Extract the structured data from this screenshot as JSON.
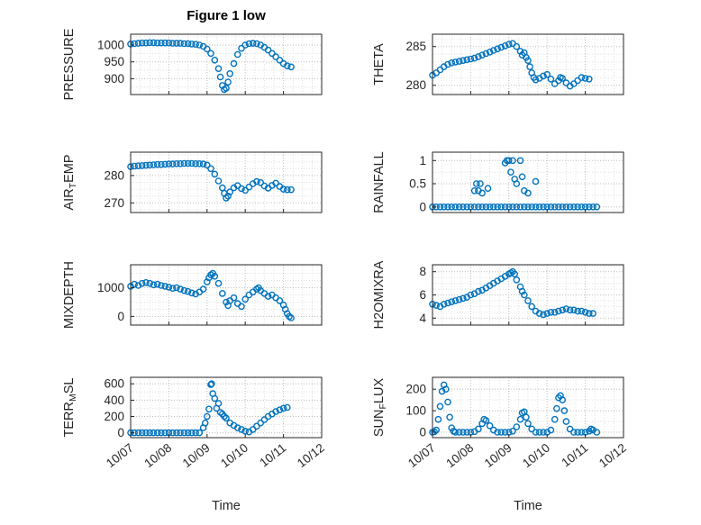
{
  "figure": {
    "title": "Figure 1 low",
    "xlabel": "Time",
    "marker_color": "#0072BD",
    "axis_color": "#262626",
    "grid_major_color": "#bdbdbd",
    "grid_minor_color": "#e0e0e0",
    "x_axis": {
      "lim": [
        7,
        12
      ],
      "ticks": [
        7,
        8,
        9,
        10,
        11,
        12
      ],
      "labels": [
        "10/07",
        "10/08",
        "10/09",
        "10/10",
        "10/11",
        "10/12"
      ],
      "minor_step": 0.25
    }
  },
  "chart_data": [
    {
      "id": "pressure",
      "type": "scatter",
      "row": 0,
      "col": 0,
      "ylabel": {
        "pre": "PRESSURE",
        "sub": "",
        "post": ""
      },
      "ylim": [
        853,
        1032
      ],
      "yticks": [
        900,
        950,
        1000
      ],
      "ytick_labels": [
        "900",
        "950",
        "1000"
      ],
      "y_minor_step": 25,
      "x": [
        7.0,
        7.1,
        7.2,
        7.3,
        7.4,
        7.5,
        7.6,
        7.7,
        7.8,
        7.9,
        8.0,
        8.1,
        8.2,
        8.3,
        8.4,
        8.5,
        8.6,
        8.7,
        8.8,
        8.9,
        9.0,
        9.1,
        9.2,
        9.3,
        9.35,
        9.4,
        9.45,
        9.5,
        9.55,
        9.6,
        9.7,
        9.8,
        9.9,
        10.0,
        10.1,
        10.2,
        10.3,
        10.4,
        10.5,
        10.6,
        10.7,
        10.8,
        10.9,
        11.0,
        11.1,
        11.2
      ],
      "y": [
        1003,
        1004,
        1005,
        1006,
        1006,
        1007,
        1007,
        1006,
        1006,
        1006,
        1006,
        1005,
        1005,
        1005,
        1004,
        1004,
        1003,
        1002,
        1000,
        996,
        988,
        975,
        955,
        930,
        905,
        880,
        868,
        872,
        890,
        915,
        945,
        972,
        990,
        1000,
        1004,
        1005,
        1004,
        1000,
        993,
        985,
        975,
        965,
        955,
        945,
        938,
        935
      ]
    },
    {
      "id": "theta",
      "type": "scatter",
      "row": 0,
      "col": 1,
      "ylabel": {
        "pre": "THETA",
        "sub": "",
        "post": ""
      },
      "ylim": [
        278.8,
        286.6
      ],
      "yticks": [
        280,
        285
      ],
      "ytick_labels": [
        "280",
        "285"
      ],
      "y_minor_step": 1,
      "x": [
        7.0,
        7.1,
        7.2,
        7.3,
        7.4,
        7.5,
        7.6,
        7.7,
        7.8,
        7.9,
        8.0,
        8.1,
        8.2,
        8.3,
        8.4,
        8.5,
        8.6,
        8.7,
        8.8,
        8.9,
        9.0,
        9.1,
        9.2,
        9.3,
        9.35,
        9.4,
        9.45,
        9.5,
        9.55,
        9.6,
        9.65,
        9.7,
        9.8,
        9.9,
        10.0,
        10.1,
        10.2,
        10.3,
        10.35,
        10.4,
        10.5,
        10.6,
        10.7,
        10.8,
        10.9,
        11.0,
        11.1
      ],
      "y": [
        281.3,
        281.6,
        282.0,
        282.4,
        282.7,
        282.9,
        283.0,
        283.1,
        283.2,
        283.3,
        283.4,
        283.5,
        283.7,
        283.9,
        284.1,
        284.3,
        284.5,
        284.7,
        284.9,
        285.1,
        285.3,
        285.4,
        285.0,
        284.4,
        283.9,
        284.2,
        283.6,
        283.2,
        282.4,
        281.6,
        281.0,
        280.7,
        280.9,
        281.2,
        281.4,
        280.8,
        280.2,
        280.6,
        281.0,
        280.9,
        280.3,
        279.9,
        280.2,
        280.6,
        281.0,
        280.9,
        280.8
      ]
    },
    {
      "id": "air-temp",
      "type": "scatter",
      "row": 1,
      "col": 0,
      "ylabel": {
        "pre": "AIR",
        "sub": "T",
        "post": "EMP"
      },
      "ylim": [
        266.5,
        288.5
      ],
      "yticks": [
        270,
        280
      ],
      "ytick_labels": [
        "270",
        "280"
      ],
      "y_minor_step": 2.5,
      "x": [
        7.0,
        7.1,
        7.2,
        7.3,
        7.4,
        7.5,
        7.6,
        7.7,
        7.8,
        7.9,
        8.0,
        8.1,
        8.2,
        8.3,
        8.4,
        8.5,
        8.6,
        8.7,
        8.8,
        8.9,
        9.0,
        9.1,
        9.2,
        9.3,
        9.4,
        9.45,
        9.5,
        9.55,
        9.6,
        9.7,
        9.8,
        9.9,
        10.0,
        10.1,
        10.2,
        10.3,
        10.4,
        10.5,
        10.6,
        10.7,
        10.8,
        10.9,
        11.0,
        11.1,
        11.2
      ],
      "y": [
        283.2,
        283.4,
        283.5,
        283.6,
        283.7,
        283.8,
        283.9,
        284.0,
        284.0,
        284.1,
        284.2,
        284.2,
        284.3,
        284.3,
        284.4,
        284.4,
        284.4,
        284.3,
        284.3,
        284.2,
        283.8,
        282.5,
        280.5,
        278.0,
        275.5,
        273.5,
        271.8,
        272.5,
        274.0,
        275.5,
        276.3,
        275.2,
        274.6,
        275.8,
        277.0,
        277.8,
        277.4,
        276.2,
        275.4,
        276.4,
        277.2,
        276.0,
        275.0,
        274.8,
        274.8
      ]
    },
    {
      "id": "rainfall",
      "type": "scatter",
      "row": 1,
      "col": 1,
      "ylabel": {
        "pre": "RAINFALL",
        "sub": "",
        "post": ""
      },
      "ylim": [
        -0.12,
        1.18
      ],
      "yticks": [
        0,
        0.5,
        1
      ],
      "ytick_labels": [
        "0",
        "0.5",
        "1"
      ],
      "y_minor_step": 0.25,
      "x": [
        7.0,
        7.1,
        7.2,
        7.3,
        7.4,
        7.5,
        7.6,
        7.7,
        7.8,
        7.9,
        8.0,
        8.1,
        8.2,
        8.3,
        8.4,
        8.5,
        8.6,
        8.7,
        8.8,
        8.9,
        9.0,
        9.1,
        9.2,
        9.3,
        9.4,
        9.5,
        9.6,
        9.7,
        9.8,
        9.9,
        10.0,
        10.1,
        10.2,
        10.3,
        10.4,
        10.5,
        10.6,
        10.7,
        10.8,
        10.9,
        11.0,
        11.1,
        11.2,
        11.3,
        8.1,
        8.15,
        8.2,
        8.25,
        8.3,
        8.45,
        8.9,
        8.95,
        9.0,
        9.05,
        9.1,
        9.15,
        9.2,
        9.3,
        9.35,
        9.4,
        9.5,
        9.7
      ],
      "y": [
        0,
        0,
        0,
        0,
        0,
        0,
        0,
        0,
        0,
        0,
        0,
        0,
        0,
        0,
        0,
        0,
        0,
        0,
        0,
        0,
        0,
        0,
        0,
        0,
        0,
        0,
        0,
        0,
        0,
        0,
        0,
        0,
        0,
        0,
        0,
        0,
        0,
        0,
        0,
        0,
        0,
        0,
        0,
        0,
        0.35,
        0.5,
        0.35,
        0.5,
        0.3,
        0.4,
        0.95,
        1.0,
        1.0,
        0.75,
        1.0,
        0.6,
        0.5,
        1.0,
        0.65,
        0.35,
        0.3,
        0.55
      ]
    },
    {
      "id": "mixdepth",
      "type": "scatter",
      "row": 2,
      "col": 0,
      "ylabel": {
        "pre": "MIXDEPTH",
        "sub": "",
        "post": ""
      },
      "ylim": [
        -300,
        1800
      ],
      "yticks": [
        0,
        1000
      ],
      "ytick_labels": [
        "0",
        "1000"
      ],
      "y_minor_step": 250,
      "x": [
        7.0,
        7.1,
        7.2,
        7.3,
        7.4,
        7.5,
        7.6,
        7.7,
        7.8,
        7.9,
        8.0,
        8.1,
        8.2,
        8.3,
        8.4,
        8.5,
        8.6,
        8.7,
        8.8,
        8.9,
        9.0,
        9.05,
        9.1,
        9.15,
        9.2,
        9.3,
        9.4,
        9.5,
        9.55,
        9.6,
        9.7,
        9.8,
        9.9,
        10.0,
        10.1,
        10.2,
        10.3,
        10.35,
        10.4,
        10.5,
        10.6,
        10.7,
        10.8,
        10.9,
        11.0,
        11.05,
        11.1,
        11.15,
        11.2
      ],
      "y": [
        1050,
        1120,
        1080,
        1150,
        1180,
        1150,
        1100,
        1120,
        1080,
        1050,
        1020,
        980,
        1000,
        950,
        900,
        870,
        820,
        780,
        850,
        950,
        1200,
        1350,
        1450,
        1500,
        1400,
        1150,
        800,
        500,
        380,
        550,
        650,
        450,
        350,
        600,
        750,
        850,
        950,
        1000,
        900,
        800,
        700,
        750,
        650,
        550,
        400,
        250,
        100,
        0,
        -50
      ]
    },
    {
      "id": "h2omixra",
      "type": "scatter",
      "row": 2,
      "col": 1,
      "ylabel": {
        "pre": "H2OMIXRA",
        "sub": "",
        "post": ""
      },
      "ylim": [
        3.4,
        8.6
      ],
      "yticks": [
        4,
        6,
        8
      ],
      "ytick_labels": [
        "4",
        "6",
        "8"
      ],
      "y_minor_step": 0.5,
      "x": [
        7.0,
        7.1,
        7.2,
        7.3,
        7.4,
        7.5,
        7.6,
        7.7,
        7.8,
        7.9,
        8.0,
        8.1,
        8.2,
        8.3,
        8.4,
        8.5,
        8.6,
        8.7,
        8.8,
        8.9,
        9.0,
        9.05,
        9.1,
        9.15,
        9.2,
        9.3,
        9.35,
        9.4,
        9.5,
        9.6,
        9.7,
        9.8,
        9.9,
        10.0,
        10.1,
        10.2,
        10.3,
        10.4,
        10.5,
        10.6,
        10.7,
        10.8,
        10.9,
        11.0,
        11.1,
        11.2
      ],
      "y": [
        5.2,
        5.1,
        5.0,
        5.2,
        5.3,
        5.4,
        5.5,
        5.6,
        5.7,
        5.8,
        6.0,
        6.1,
        6.3,
        6.4,
        6.6,
        6.8,
        7.0,
        7.2,
        7.4,
        7.6,
        7.8,
        7.9,
        8.0,
        7.8,
        7.3,
        6.7,
        6.3,
        6.0,
        5.5,
        5.0,
        4.6,
        4.4,
        4.3,
        4.4,
        4.5,
        4.5,
        4.6,
        4.7,
        4.8,
        4.7,
        4.7,
        4.6,
        4.6,
        4.5,
        4.4,
        4.4
      ]
    },
    {
      "id": "terr-msl",
      "type": "scatter",
      "row": 3,
      "col": 0,
      "ylabel": {
        "pre": "TERR",
        "sub": "M",
        "post": "SL"
      },
      "ylim": [
        -60,
        680
      ],
      "yticks": [
        0,
        200,
        400,
        600
      ],
      "ytick_labels": [
        "0",
        "200",
        "400",
        "600"
      ],
      "y_minor_step": 100,
      "x": [
        7.0,
        7.1,
        7.2,
        7.3,
        7.4,
        7.5,
        7.6,
        7.7,
        7.8,
        7.9,
        8.0,
        8.1,
        8.2,
        8.3,
        8.4,
        8.5,
        8.6,
        8.7,
        8.8,
        8.9,
        8.95,
        9.0,
        9.05,
        9.1,
        9.12,
        9.15,
        9.2,
        9.25,
        9.3,
        9.35,
        9.4,
        9.45,
        9.5,
        9.6,
        9.7,
        9.8,
        9.9,
        10.0,
        10.1,
        10.2,
        10.3,
        10.4,
        10.5,
        10.6,
        10.7,
        10.8,
        10.9,
        11.0,
        11.1
      ],
      "y": [
        0,
        0,
        0,
        0,
        0,
        0,
        0,
        0,
        0,
        0,
        0,
        0,
        0,
        0,
        0,
        0,
        0,
        0,
        0,
        60,
        120,
        200,
        290,
        590,
        600,
        480,
        420,
        300,
        360,
        250,
        230,
        200,
        180,
        120,
        90,
        60,
        40,
        20,
        10,
        40,
        80,
        120,
        160,
        200,
        230,
        260,
        280,
        300,
        310
      ]
    },
    {
      "id": "sun-flux",
      "type": "scatter",
      "row": 3,
      "col": 1,
      "ylabel": {
        "pre": "SUN",
        "sub": "F",
        "post": "LUX"
      },
      "ylim": [
        -25,
        255
      ],
      "yticks": [
        0,
        100,
        200
      ],
      "ytick_labels": [
        "0",
        "100",
        "200"
      ],
      "y_minor_step": 50,
      "x": [
        7.0,
        7.05,
        7.1,
        7.15,
        7.2,
        7.25,
        7.3,
        7.35,
        7.4,
        7.45,
        7.5,
        7.55,
        7.6,
        7.7,
        7.8,
        7.9,
        8.0,
        8.1,
        8.2,
        8.3,
        8.35,
        8.4,
        8.5,
        8.6,
        8.7,
        8.8,
        8.9,
        9.0,
        9.1,
        9.2,
        9.3,
        9.35,
        9.4,
        9.45,
        9.5,
        9.6,
        9.7,
        9.8,
        9.9,
        10.0,
        10.1,
        10.2,
        10.25,
        10.3,
        10.35,
        10.4,
        10.45,
        10.5,
        10.6,
        10.7,
        10.8,
        10.9,
        11.0,
        11.1,
        11.15,
        11.2,
        11.3
      ],
      "y": [
        0,
        2,
        10,
        60,
        120,
        190,
        220,
        200,
        140,
        70,
        20,
        5,
        0,
        0,
        0,
        0,
        0,
        3,
        15,
        40,
        60,
        55,
        30,
        10,
        0,
        0,
        0,
        0,
        5,
        25,
        60,
        90,
        95,
        70,
        40,
        15,
        0,
        0,
        0,
        0,
        10,
        60,
        110,
        160,
        170,
        150,
        100,
        50,
        15,
        0,
        0,
        0,
        0,
        5,
        15,
        10,
        0
      ]
    }
  ]
}
